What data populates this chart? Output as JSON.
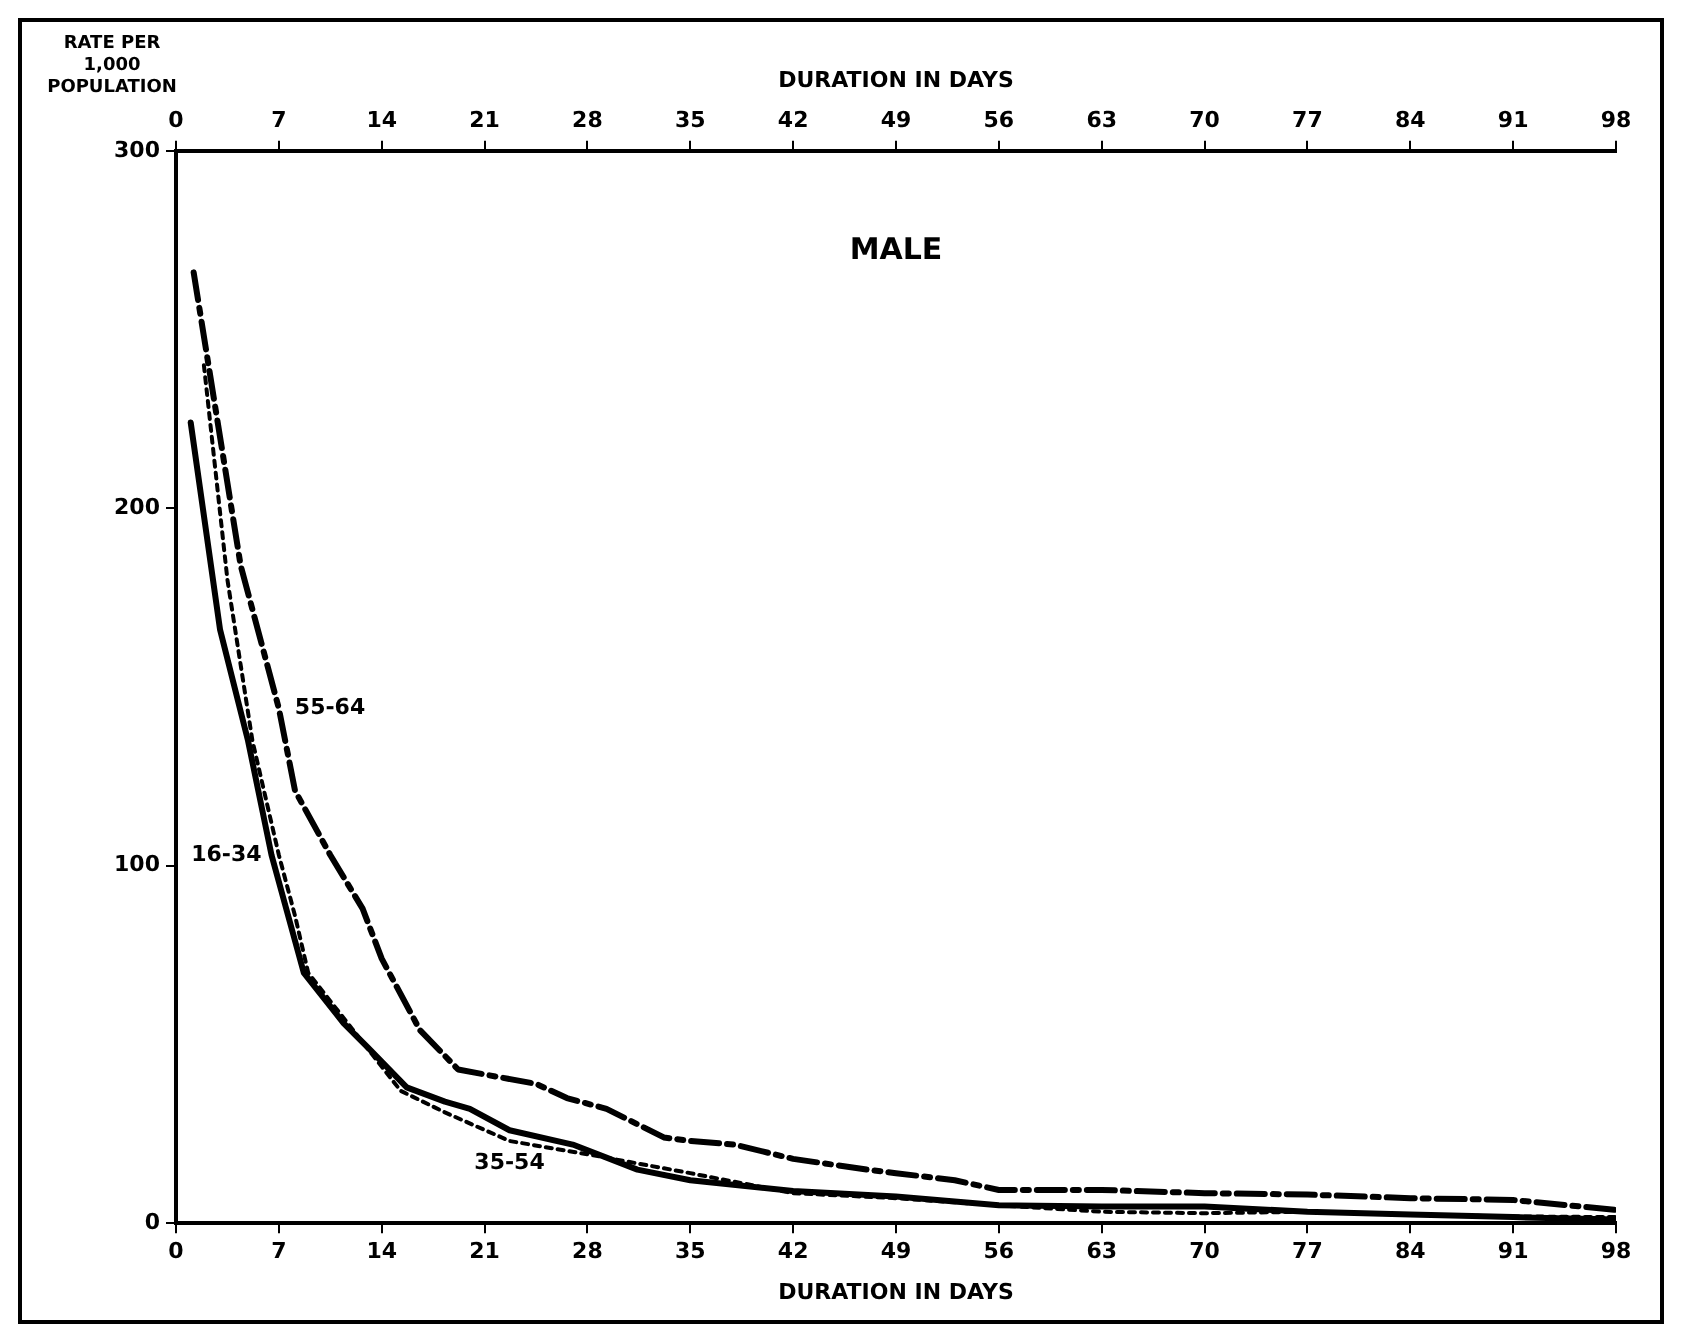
{
  "chart_data": {
    "type": "line",
    "title": "MALE",
    "xlabel": "DURATION IN DAYS",
    "x2label": "DURATION IN DAYS",
    "ylabel": "RATE PER 1,000 POPULATION",
    "xlim": [
      0,
      98
    ],
    "xticks": [
      0,
      7,
      14,
      21,
      28,
      35,
      42,
      49,
      56,
      63,
      70,
      77,
      84,
      91,
      98
    ],
    "x2lim": [
      0,
      98
    ],
    "x2ticks": [
      0,
      7,
      14,
      21,
      28,
      35,
      42,
      49,
      56,
      63,
      70,
      77,
      84,
      91,
      98
    ],
    "ylim": [
      0,
      300
    ],
    "yticks": [
      0,
      100,
      200,
      300
    ],
    "grid": false,
    "legend": false,
    "marker": "none",
    "series": [
      {
        "name": "16-34",
        "color": "#000000",
        "line_style": "solid",
        "x": [
          1,
          3,
          4.9,
          6.5,
          8.7,
          11.4,
          13.1,
          15.7,
          18.3,
          20,
          22.7,
          27,
          31.4,
          35,
          42,
          49,
          56,
          63,
          70,
          77,
          84,
          91,
          98
        ],
        "values": [
          224,
          166,
          135,
          103,
          70,
          56,
          49,
          38,
          34,
          32,
          26,
          22,
          15,
          12,
          9,
          7.5,
          5,
          4.7,
          4.7,
          3.2,
          2.4,
          1.7,
          1
        ]
      },
      {
        "name": "35-54",
        "color": "#000000",
        "line_style": "dotted",
        "x": [
          1.9,
          3.5,
          5.2,
          7,
          8.1,
          9,
          15.3,
          18.3,
          22.7,
          28.4,
          35,
          42,
          49,
          56,
          63,
          70,
          77,
          84,
          91,
          98
        ],
        "values": [
          240,
          180,
          135,
          103,
          86,
          70,
          37,
          31,
          23,
          19,
          14,
          8.4,
          7,
          5,
          3.2,
          2.8,
          3.2,
          2.4,
          1.9,
          1.7
        ]
      },
      {
        "name": "55-64",
        "color": "#000000",
        "line_style": "dashed",
        "x": [
          1.2,
          4.4,
          7,
          8.1,
          10.5,
          12.7,
          14,
          16.6,
          19.2,
          21.8,
          24.5,
          26.6,
          29.3,
          33.2,
          35,
          38,
          42,
          47,
          49,
          53,
          56,
          63,
          70,
          77,
          84,
          91,
          98
        ],
        "values": [
          266,
          184,
          144,
          121,
          103,
          88,
          74,
          54,
          43,
          41,
          39,
          35,
          32,
          24,
          23,
          22,
          18,
          15,
          14,
          12,
          9.3,
          9.3,
          8.4,
          8,
          7,
          6.5,
          3.7
        ]
      }
    ]
  }
}
